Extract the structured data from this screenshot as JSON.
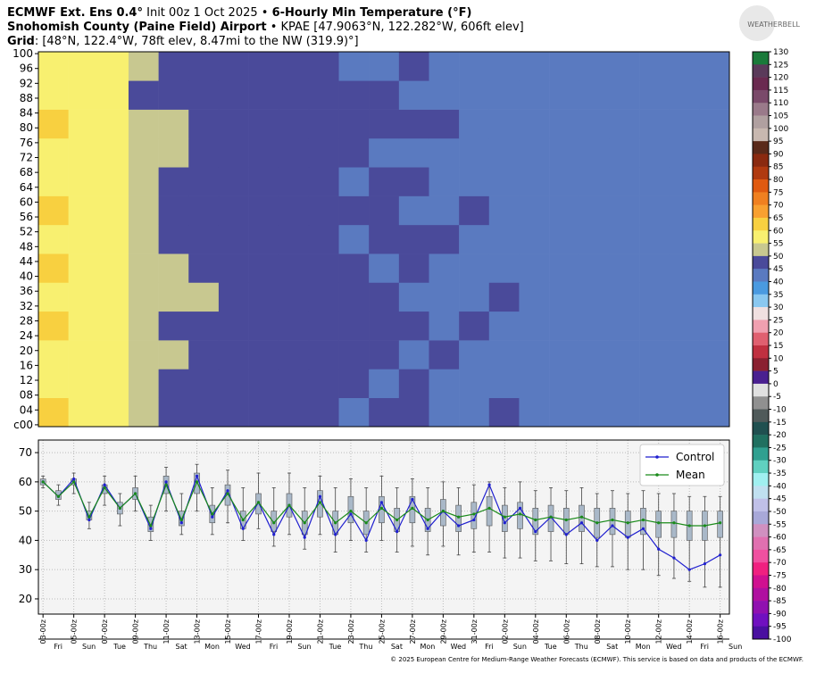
{
  "header": {
    "line1": [
      {
        "text": "ECMWF Ext. Ens 0.4°",
        "bold": true
      },
      {
        "text": " Init 00z 1 Oct 2025 • ",
        "bold": false
      },
      {
        "text": "6-Hourly Min Temperature (°F)",
        "bold": true
      }
    ],
    "line2": [
      {
        "text": "Snohomish County (Paine Field) Airport",
        "bold": true
      },
      {
        "text": " • KPAE [47.9063°N, 122.282°W, 606ft elev]",
        "bold": false
      }
    ],
    "line3": [
      {
        "text": "Grid",
        "bold": true
      },
      {
        "text": ": [48°N, 122.4°W, 78ft elev, 8.47mi to the NW (319.9)°]",
        "bold": false
      }
    ],
    "logo": "WEATHERBELL",
    "footer": "© 2025 European Centre for Medium-Range Weather Forecasts (ECMWF). This service is based on data and products of the ECMWF."
  },
  "chart_data": [
    {
      "type": "heatmap",
      "xlim": [
        -0.3,
        44.6
      ],
      "ylim": [
        -0.5,
        100.5
      ],
      "yticks": [
        {
          "value": 0,
          "label": "c00"
        },
        {
          "value": 4,
          "label": "04"
        },
        {
          "value": 8,
          "label": "08"
        },
        12,
        16,
        20,
        24,
        28,
        32,
        36,
        40,
        44,
        48,
        52,
        56,
        60,
        64,
        68,
        72,
        76,
        80,
        84,
        88,
        92,
        96,
        100
      ],
      "values": [
        [
          61,
          58,
          56,
          52,
          49,
          50,
          47,
          48,
          46,
          47,
          45,
          46,
          47,
          44,
          45,
          46,
          43,
          44,
          45,
          44,
          42,
          44,
          43
        ],
        [
          60,
          59,
          57,
          51,
          50,
          48,
          48,
          49,
          47,
          46,
          47,
          45,
          46,
          45,
          44,
          45,
          44,
          43,
          44,
          45,
          43,
          43,
          44
        ],
        [
          59,
          60,
          58,
          53,
          51,
          49,
          47,
          48,
          48,
          47,
          46,
          47,
          45,
          46,
          45,
          44,
          45,
          44,
          43,
          44,
          44,
          42,
          43
        ],
        [
          61,
          57,
          56,
          52,
          50,
          50,
          49,
          47,
          47,
          48,
          46,
          46,
          46,
          45,
          46,
          45,
          44,
          45,
          44,
          43,
          43,
          44,
          42
        ],
        [
          60,
          58,
          57,
          54,
          52,
          51,
          48,
          48,
          46,
          47,
          47,
          46,
          45,
          44,
          45,
          46,
          43,
          44,
          44,
          44,
          42,
          43,
          44
        ],
        [
          62,
          59,
          58,
          53,
          51,
          49,
          49,
          47,
          47,
          46,
          46,
          45,
          46,
          45,
          44,
          45,
          45,
          43,
          45,
          43,
          44,
          44,
          43
        ],
        [
          60,
          58,
          56,
          52,
          50,
          50,
          48,
          49,
          48,
          47,
          45,
          46,
          47,
          46,
          45,
          44,
          44,
          44,
          43,
          44,
          43,
          42,
          44
        ],
        [
          61,
          59,
          57,
          51,
          49,
          48,
          49,
          48,
          47,
          46,
          46,
          47,
          45,
          45,
          46,
          45,
          43,
          45,
          44,
          45,
          44,
          43,
          43
        ],
        [
          59,
          58,
          56,
          53,
          50,
          49,
          47,
          47,
          46,
          47,
          45,
          46,
          46,
          44,
          45,
          44,
          44,
          43,
          44,
          43,
          42,
          44,
          42
        ],
        [
          60,
          57,
          57,
          52,
          51,
          50,
          48,
          48,
          47,
          46,
          46,
          45,
          45,
          45,
          44,
          45,
          45,
          44,
          43,
          44,
          43,
          43,
          44
        ],
        [
          61,
          58,
          58,
          51,
          52,
          49,
          48,
          47,
          48,
          47,
          47,
          46,
          46,
          46,
          45,
          44,
          44,
          45,
          44,
          43,
          44,
          42,
          43
        ],
        [
          60,
          59,
          56,
          50,
          50,
          48,
          47,
          48,
          47,
          46,
          46,
          46,
          45,
          45,
          44,
          44,
          43,
          44,
          44,
          44,
          43,
          43,
          42
        ],
        [
          59,
          58,
          57,
          52,
          49,
          49,
          48,
          47,
          46,
          46,
          45,
          45,
          46,
          44,
          45,
          45,
          44,
          43,
          43,
          44,
          42,
          44,
          43
        ]
      ],
      "colorbar": {
        "ticks": [
          130,
          125,
          120,
          115,
          110,
          105,
          100,
          95,
          90,
          85,
          80,
          75,
          70,
          65,
          60,
          55,
          50,
          45,
          40,
          35,
          30,
          25,
          20,
          15,
          10,
          5,
          0,
          -5,
          -10,
          -15,
          -20,
          -25,
          -30,
          -35,
          -40,
          -45,
          -50,
          -55,
          -60,
          -65,
          -70,
          -75,
          -80,
          -85,
          -90,
          -95,
          -100
        ],
        "colors": [
          "#1a7a3a",
          "#5a3a5a",
          "#6a2a50",
          "#7a4a6a",
          "#9a7a8a",
          "#b0a0a0",
          "#c8b8b0",
          "#5a2a1a",
          "#8a2a10",
          "#b03a10",
          "#e05a10",
          "#f08020",
          "#f8a030",
          "#f8d040",
          "#f8f070",
          "#c8c890",
          "#4a4a9a",
          "#5a7ac0",
          "#4a9ae0",
          "#8ac8f0",
          "#f0e0e0",
          "#f0a0b0",
          "#e06070",
          "#c03040",
          "#8a2030",
          "#4a2090",
          "#e0e0e0",
          "#909090",
          "#505a5a",
          "#205050",
          "#207060",
          "#30a090",
          "#60d0c0",
          "#a0f0f0",
          "#c0e0f0",
          "#c0c0e8",
          "#a8a8d8",
          "#d090c0",
          "#e070b0",
          "#f050a0",
          "#f02080",
          "#d01090",
          "#b010a0",
          "#9010b0",
          "#7010c0",
          "#4a10a0"
        ]
      }
    },
    {
      "type": "box",
      "xlim": [
        -0.3,
        44.6
      ],
      "ylim": [
        14.8,
        74.3
      ],
      "yticks": [
        20,
        30,
        40,
        50,
        60,
        70
      ],
      "grid": true,
      "legend": "upper right",
      "date_ticks": [
        {
          "value": 0,
          "label": "03-00z"
        },
        {
          "value": 2,
          "label": "05-00z"
        },
        {
          "value": 4,
          "label": "07-00z"
        },
        {
          "value": 6,
          "label": "09-00z"
        },
        {
          "value": 8,
          "label": "11-00z"
        },
        {
          "value": 10,
          "label": "13-00z"
        },
        {
          "value": 12,
          "label": "15-00z"
        },
        {
          "value": 14,
          "label": "17-00z"
        },
        {
          "value": 16,
          "label": "19-00z"
        },
        {
          "value": 18,
          "label": "21-00z"
        },
        {
          "value": 20,
          "label": "23-00z"
        },
        {
          "value": 22,
          "label": "25-00z"
        },
        {
          "value": 24,
          "label": "27-00z"
        },
        {
          "value": 26,
          "label": "29-00z"
        },
        {
          "value": 28,
          "label": "31-00z"
        },
        {
          "value": 30,
          "label": "02-00z"
        },
        {
          "value": 32,
          "label": "04-00z"
        },
        {
          "value": 34,
          "label": "06-00z"
        },
        {
          "value": 36,
          "label": "08-00z"
        },
        {
          "value": 38,
          "label": "10-00z"
        },
        {
          "value": 40,
          "label": "12-00z"
        },
        {
          "value": 42,
          "label": "14-00z"
        },
        {
          "value": 44,
          "label": "16-00z"
        }
      ],
      "weekdays": [
        "Fri",
        "Sun",
        "Tue",
        "Thu",
        "Sat",
        "Mon",
        "Wed",
        "Fri",
        "Sun",
        "Tue",
        "Thu",
        "Sat",
        "Mon",
        "Wed",
        "Fri",
        "Sun",
        "Tue",
        "Thu",
        "Sat",
        "Mon",
        "Wed",
        "Fri",
        "Sun"
      ],
      "q1": [
        59,
        54,
        59,
        47,
        56,
        49,
        54,
        43,
        56,
        45,
        56,
        46,
        52,
        44,
        49,
        43,
        48,
        42,
        48,
        42,
        46,
        42,
        46,
        43,
        46,
        43,
        45,
        43,
        44,
        45,
        43,
        44,
        42,
        43,
        42,
        43,
        41,
        42,
        41,
        42,
        41,
        41,
        40,
        40,
        41
      ],
      "q3": [
        61,
        57,
        61,
        50,
        59,
        53,
        58,
        48,
        62,
        50,
        63,
        52,
        59,
        50,
        56,
        50,
        56,
        50,
        57,
        50,
        55,
        50,
        55,
        51,
        55,
        51,
        54,
        52,
        53,
        55,
        52,
        53,
        51,
        52,
        51,
        52,
        51,
        51,
        50,
        51,
        50,
        50,
        50,
        50,
        50
      ],
      "low": [
        58,
        52,
        56,
        44,
        52,
        45,
        50,
        40,
        50,
        42,
        50,
        42,
        46,
        40,
        44,
        38,
        42,
        37,
        42,
        36,
        40,
        36,
        40,
        36,
        38,
        35,
        38,
        35,
        36,
        36,
        34,
        34,
        33,
        33,
        32,
        32,
        31,
        31,
        30,
        30,
        28,
        27,
        26,
        24,
        24
      ],
      "high": [
        62,
        59,
        63,
        53,
        62,
        56,
        62,
        52,
        65,
        56,
        66,
        58,
        64,
        58,
        63,
        58,
        63,
        58,
        62,
        58,
        61,
        58,
        62,
        58,
        61,
        58,
        60,
        58,
        59,
        60,
        58,
        60,
        57,
        58,
        57,
        58,
        56,
        57,
        56,
        57,
        56,
        56,
        55,
        55,
        55
      ],
      "box_color": "#a9b8c8",
      "series": [
        {
          "name": "Control",
          "color": "#1f1fcf",
          "values": [
            60,
            55,
            61,
            47,
            59,
            51,
            56,
            44,
            60,
            46,
            62,
            48,
            57,
            44,
            53,
            42,
            52,
            41,
            55,
            42,
            49,
            40,
            53,
            43,
            54,
            44,
            50,
            45,
            47,
            59,
            46,
            51,
            43,
            48,
            42,
            46,
            40,
            45,
            41,
            44,
            37,
            34,
            30,
            32,
            35
          ]
        },
        {
          "name": "Mean",
          "color": "#1a8a1a",
          "values": [
            60,
            55,
            60,
            48,
            58,
            51,
            56,
            45,
            59,
            47,
            60,
            49,
            56,
            47,
            53,
            46,
            52,
            46,
            53,
            46,
            50,
            46,
            51,
            47,
            51,
            47,
            50,
            48,
            49,
            51,
            48,
            49,
            47,
            48,
            47,
            48,
            46,
            47,
            46,
            47,
            46,
            46,
            45,
            45,
            46
          ]
        }
      ]
    }
  ]
}
